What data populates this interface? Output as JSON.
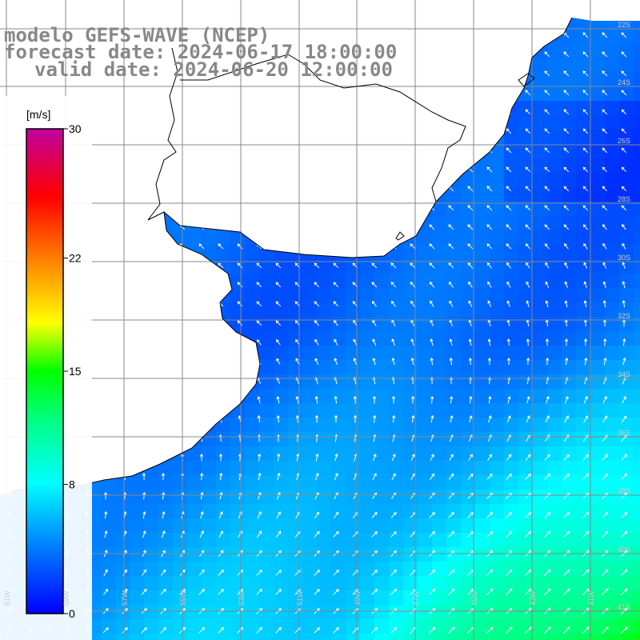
{
  "title": {
    "line1": "modelo GEFS-WAVE (NCEP)",
    "line2": "forecast date: 2024-06-17 18:00:00",
    "line3": "valid date: 2024-06-20 12:00:00"
  },
  "colorbar": {
    "unit": "[m/s]",
    "ticks": [
      "30",
      "22",
      "15",
      "8",
      "0"
    ],
    "tick_values": [
      30,
      22,
      15,
      8,
      0
    ],
    "min": 0,
    "max": 30,
    "colors": [
      "#0000ff",
      "#0080ff",
      "#00ffff",
      "#00ff00",
      "#ffff00",
      "#ff8000",
      "#ff0000",
      "#c000a0"
    ]
  },
  "map": {
    "longitude_labels": [
      "61W",
      "59W",
      "57W",
      "55W",
      "53W",
      "51W",
      "49W",
      "47W",
      "45W",
      "43W",
      "41W"
    ],
    "latitude_labels": [
      "22S",
      "24S",
      "26S",
      "28S",
      "30S",
      "32S",
      "34S",
      "36S",
      "38S",
      "40S",
      "41S"
    ],
    "land_color": "#ffffff",
    "coast_color": "#000000",
    "grid_color": "#888888"
  }
}
